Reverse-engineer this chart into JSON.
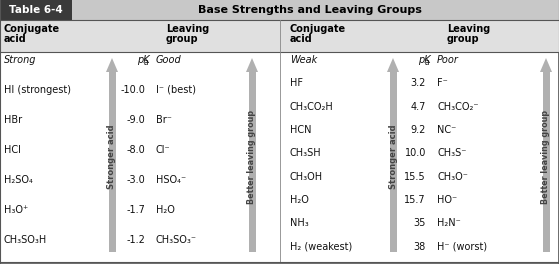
{
  "title_box_text": "Table 6-4",
  "title_main_text": "Base Strengths and Leaving Groups",
  "title_box_bg": "#3a3a3a",
  "title_bar_bg": "#c8c8c8",
  "header_bg": "#e0e0e0",
  "body_bg": "#ffffff",
  "border_color": "#555555",
  "divider_color": "#888888",
  "left_conj_acid": [
    "Strong",
    "HI (strongest)",
    "HBr",
    "HCl",
    "H₂SO₄",
    "H₃O⁺",
    "CH₃SO₃H"
  ],
  "left_pka_vals": [
    "-10.0",
    "-9.0",
    "-8.0",
    "-3.0",
    "-1.7",
    "-1.2"
  ],
  "left_leaving": [
    "Good",
    "I⁻ (best)",
    "Br⁻",
    "Cl⁻",
    "HSO₄⁻",
    "H₂O",
    "CH₃SO₃⁻"
  ],
  "right_conj_acid": [
    "Weak",
    "HF",
    "CH₃CO₂H",
    "HCN",
    "CH₃SH",
    "CH₃OH",
    "H₂O",
    "NH₃",
    "H₂ (weakest)"
  ],
  "right_pka_vals": [
    "3.2",
    "4.7",
    "9.2",
    "10.0",
    "15.5",
    "15.7",
    "35",
    "38"
  ],
  "right_leaving": [
    "Poor",
    "F⁻",
    "CH₃CO₂⁻",
    "NC⁻",
    "CH₃S⁻",
    "CH₃O⁻",
    "HO⁻",
    "H₂N⁻",
    "H⁻ (worst)"
  ],
  "arrow_color": "#b0b0b0",
  "arrow_text_color": "#444444",
  "text_color": "#111111",
  "fig_w": 5.59,
  "fig_h": 2.64,
  "dpi": 100
}
